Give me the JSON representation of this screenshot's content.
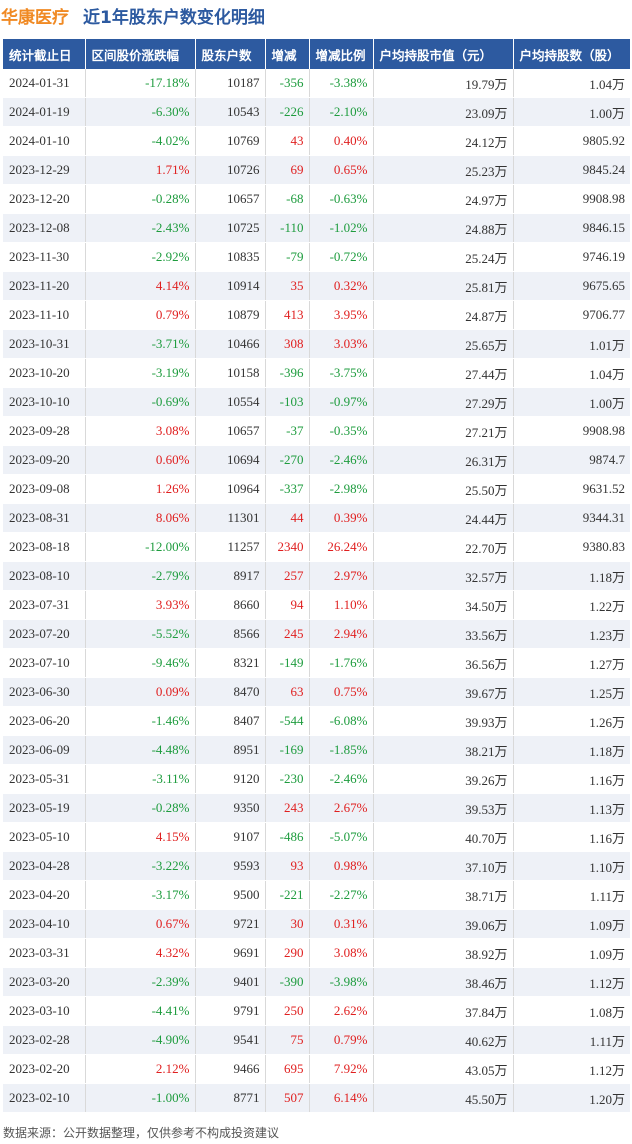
{
  "title": {
    "company": "华康医疗",
    "subtitle": "近1年股东户数变化明细"
  },
  "colors": {
    "header_bg": "#2d5aa0",
    "company_title": "#f08a24",
    "up": "#e01f1f",
    "down": "#1e9c3e"
  },
  "table": {
    "headers": [
      "统计截止日",
      "区间股价涨跌幅",
      "股东户数",
      "增减",
      "增减比例",
      "户均持股市值（元）",
      "户均持股数（股）"
    ],
    "rows": [
      [
        "2024-01-31",
        "-17.18%",
        "10187",
        "-356",
        "-3.38%",
        "19.79万",
        "1.04万"
      ],
      [
        "2024-01-19",
        "-6.30%",
        "10543",
        "-226",
        "-2.10%",
        "23.09万",
        "1.00万"
      ],
      [
        "2024-01-10",
        "-4.02%",
        "10769",
        "43",
        "0.40%",
        "24.12万",
        "9805.92"
      ],
      [
        "2023-12-29",
        "1.71%",
        "10726",
        "69",
        "0.65%",
        "25.23万",
        "9845.24"
      ],
      [
        "2023-12-20",
        "-0.28%",
        "10657",
        "-68",
        "-0.63%",
        "24.97万",
        "9908.98"
      ],
      [
        "2023-12-08",
        "-2.43%",
        "10725",
        "-110",
        "-1.02%",
        "24.88万",
        "9846.15"
      ],
      [
        "2023-11-30",
        "-2.92%",
        "10835",
        "-79",
        "-0.72%",
        "25.24万",
        "9746.19"
      ],
      [
        "2023-11-20",
        "4.14%",
        "10914",
        "35",
        "0.32%",
        "25.81万",
        "9675.65"
      ],
      [
        "2023-11-10",
        "0.79%",
        "10879",
        "413",
        "3.95%",
        "24.87万",
        "9706.77"
      ],
      [
        "2023-10-31",
        "-3.71%",
        "10466",
        "308",
        "3.03%",
        "25.65万",
        "1.01万"
      ],
      [
        "2023-10-20",
        "-3.19%",
        "10158",
        "-396",
        "-3.75%",
        "27.44万",
        "1.04万"
      ],
      [
        "2023-10-10",
        "-0.69%",
        "10554",
        "-103",
        "-0.97%",
        "27.29万",
        "1.00万"
      ],
      [
        "2023-09-28",
        "3.08%",
        "10657",
        "-37",
        "-0.35%",
        "27.21万",
        "9908.98"
      ],
      [
        "2023-09-20",
        "0.60%",
        "10694",
        "-270",
        "-2.46%",
        "26.31万",
        "9874.7"
      ],
      [
        "2023-09-08",
        "1.26%",
        "10964",
        "-337",
        "-2.98%",
        "25.50万",
        "9631.52"
      ],
      [
        "2023-08-31",
        "8.06%",
        "11301",
        "44",
        "0.39%",
        "24.44万",
        "9344.31"
      ],
      [
        "2023-08-18",
        "-12.00%",
        "11257",
        "2340",
        "26.24%",
        "22.70万",
        "9380.83"
      ],
      [
        "2023-08-10",
        "-2.79%",
        "8917",
        "257",
        "2.97%",
        "32.57万",
        "1.18万"
      ],
      [
        "2023-07-31",
        "3.93%",
        "8660",
        "94",
        "1.10%",
        "34.50万",
        "1.22万"
      ],
      [
        "2023-07-20",
        "-5.52%",
        "8566",
        "245",
        "2.94%",
        "33.56万",
        "1.23万"
      ],
      [
        "2023-07-10",
        "-9.46%",
        "8321",
        "-149",
        "-1.76%",
        "36.56万",
        "1.27万"
      ],
      [
        "2023-06-30",
        "0.09%",
        "8470",
        "63",
        "0.75%",
        "39.67万",
        "1.25万"
      ],
      [
        "2023-06-20",
        "-1.46%",
        "8407",
        "-544",
        "-6.08%",
        "39.93万",
        "1.26万"
      ],
      [
        "2023-06-09",
        "-4.48%",
        "8951",
        "-169",
        "-1.85%",
        "38.21万",
        "1.18万"
      ],
      [
        "2023-05-31",
        "-3.11%",
        "9120",
        "-230",
        "-2.46%",
        "39.26万",
        "1.16万"
      ],
      [
        "2023-05-19",
        "-0.28%",
        "9350",
        "243",
        "2.67%",
        "39.53万",
        "1.13万"
      ],
      [
        "2023-05-10",
        "4.15%",
        "9107",
        "-486",
        "-5.07%",
        "40.70万",
        "1.16万"
      ],
      [
        "2023-04-28",
        "-3.22%",
        "9593",
        "93",
        "0.98%",
        "37.10万",
        "1.10万"
      ],
      [
        "2023-04-20",
        "-3.17%",
        "9500",
        "-221",
        "-2.27%",
        "38.71万",
        "1.11万"
      ],
      [
        "2023-04-10",
        "0.67%",
        "9721",
        "30",
        "0.31%",
        "39.06万",
        "1.09万"
      ],
      [
        "2023-03-31",
        "4.32%",
        "9691",
        "290",
        "3.08%",
        "38.92万",
        "1.09万"
      ],
      [
        "2023-03-20",
        "-2.39%",
        "9401",
        "-390",
        "-3.98%",
        "38.46万",
        "1.12万"
      ],
      [
        "2023-03-10",
        "-4.41%",
        "9791",
        "250",
        "2.62%",
        "37.84万",
        "1.08万"
      ],
      [
        "2023-02-28",
        "-4.90%",
        "9541",
        "75",
        "0.79%",
        "40.62万",
        "1.11万"
      ],
      [
        "2023-02-20",
        "2.12%",
        "9466",
        "695",
        "7.92%",
        "43.05万",
        "1.12万"
      ],
      [
        "2023-02-10",
        "-1.00%",
        "8771",
        "507",
        "6.14%",
        "45.50万",
        "1.20万"
      ]
    ]
  },
  "footer": "数据来源：公开数据整理，仅供参考不构成投资建议"
}
